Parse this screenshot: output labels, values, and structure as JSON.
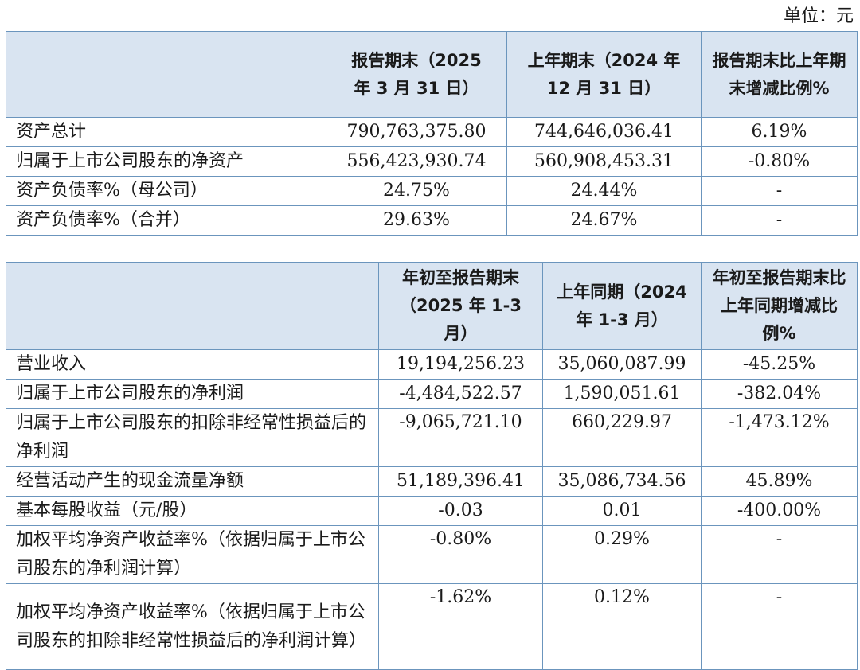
{
  "unit_label": "单位：元",
  "table1": {
    "headers": [
      "",
      "报告期末（2025 年 3 月 31 日）",
      "上年期末（2024 年 12 月 31 日）",
      "报告期末比上年期末增减比例%"
    ],
    "rows": [
      {
        "label": "资产总计",
        "c1": "790,763,375.80",
        "c2": "744,646,036.41",
        "c3": "6.19%"
      },
      {
        "label": "归属于上市公司股东的净资产",
        "c1": "556,423,930.74",
        "c2": "560,908,453.31",
        "c3": "-0.80%"
      },
      {
        "label": "资产负债率%（母公司）",
        "c1": "24.75%",
        "c2": "24.44%",
        "c3": "-"
      },
      {
        "label": "资产负债率%（合并）",
        "c1": "29.63%",
        "c2": "24.67%",
        "c3": "-"
      }
    ]
  },
  "table2": {
    "headers": [
      "",
      "年初至报告期末（2025 年 1-3 月）",
      "上年同期（2024 年 1-3 月）",
      "年初至报告期末比上年同期增减比例%"
    ],
    "rows": [
      {
        "label": "营业收入",
        "c1": "19,194,256.23",
        "c2": "35,060,087.99",
        "c3": "-45.25%"
      },
      {
        "label": "归属于上市公司股东的净利润",
        "c1": "-4,484,522.57",
        "c2": "1,590,051.61",
        "c3": "-382.04%"
      },
      {
        "label": "归属于上市公司股东的扣除非经常性损益后的净利润",
        "c1": "-9,065,721.10",
        "c2": "660,229.97",
        "c3": "-1,473.12%"
      },
      {
        "label": "经营活动产生的现金流量净额",
        "c1": "51,189,396.41",
        "c2": "35,086,734.56",
        "c3": "45.89%"
      },
      {
        "label": "基本每股收益（元/股）",
        "c1": "-0.03",
        "c2": "0.01",
        "c3": "-400.00%"
      },
      {
        "label": "加权平均净资产收益率%（依据归属于上市公司股东的净利润计算）",
        "c1": "-0.80%",
        "c2": "0.29%",
        "c3": "-"
      },
      {
        "label": "加权平均净资产收益率%（依据归属于上市公司股东的扣除非经常性损益后的净利润计算）",
        "c1": "-1.62%",
        "c2": "0.12%",
        "c3": "-"
      }
    ]
  }
}
